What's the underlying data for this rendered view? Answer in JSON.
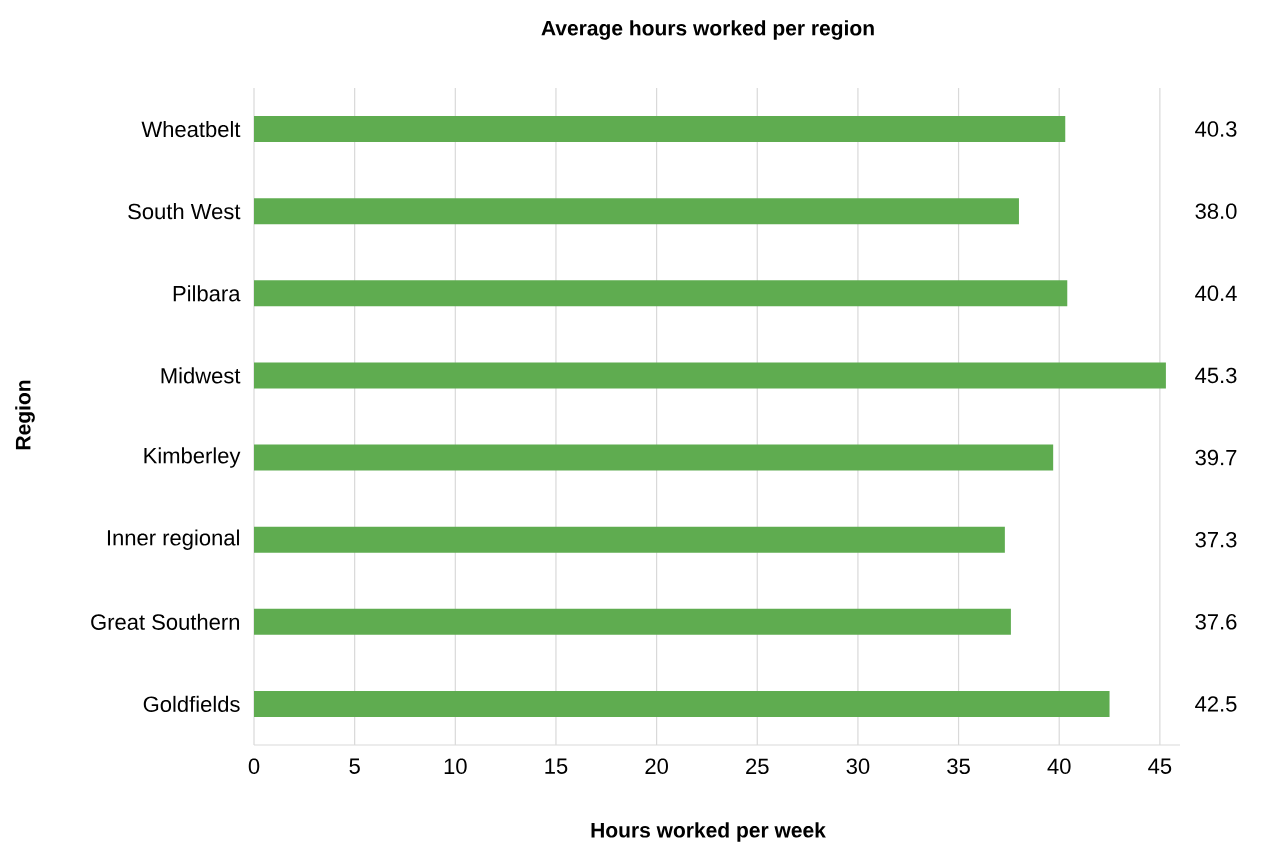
{
  "chart_data": {
    "type": "bar",
    "orientation": "horizontal",
    "title": "Average hours worked per region",
    "xlabel": "Hours worked per week",
    "ylabel": "Region",
    "categories": [
      "Wheatbelt",
      "South West",
      "Pilbara",
      "Midwest",
      "Kimberley",
      "Inner regional",
      "Great Southern",
      "Goldfields"
    ],
    "values": [
      40.3,
      38.0,
      40.4,
      45.3,
      39.7,
      37.3,
      37.6,
      42.5
    ],
    "value_labels": [
      "40.3",
      "38.0",
      "40.4",
      "45.3",
      "39.7",
      "37.3",
      "37.6",
      "42.5"
    ],
    "color": "#5fac50",
    "xlim": [
      0,
      46
    ],
    "xticks": [
      0,
      5,
      10,
      15,
      20,
      25,
      30,
      35,
      40,
      45
    ],
    "grid": "x"
  }
}
